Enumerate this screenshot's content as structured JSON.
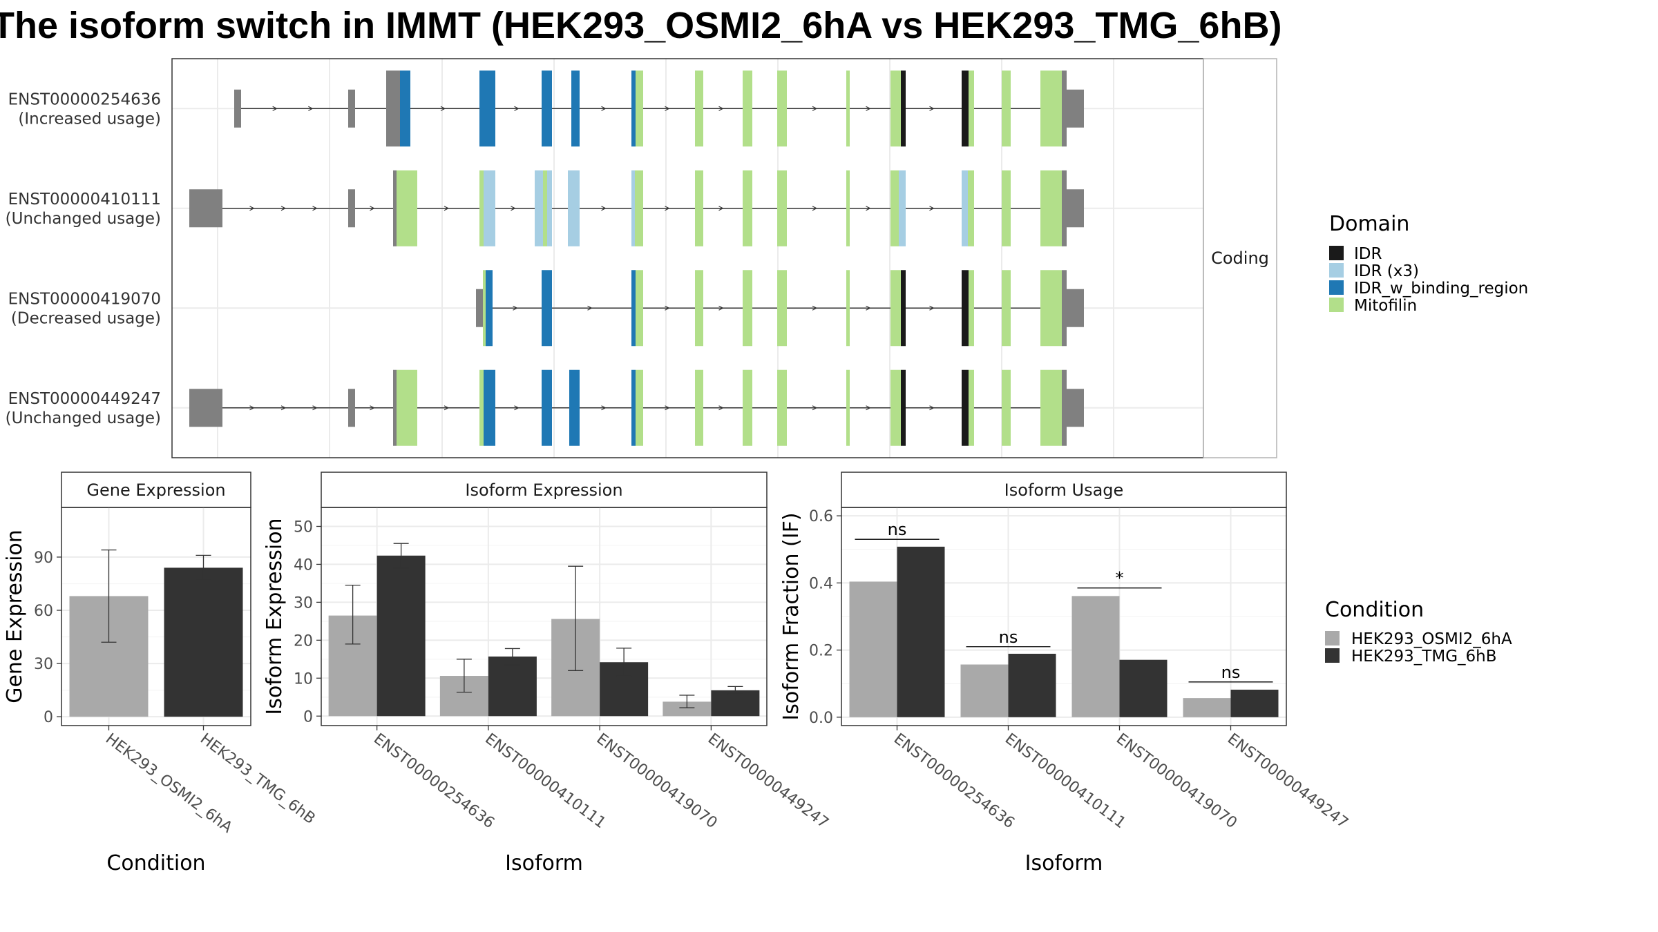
{
  "title": "The isoform switch in IMMT (HEK293_OSMI2_6hA vs HEK293_TMG_6hB)",
  "colors": {
    "IDR": "#1a1a1a",
    "IDR (x3)": "#a6cee3",
    "IDR_w_binding_region": "#1f78b4",
    "Mitofilin": "#b2df8a",
    "noncoding_exon": "#808080",
    "condition_a": "#a9a9a9",
    "condition_b": "#333333"
  },
  "chart_data": [
    {
      "type": "gene_structure",
      "strip_label": "Coding",
      "legend_title": "Domain",
      "legend": [
        "IDR",
        "IDR (x3)",
        "IDR_w_binding_region",
        "Mitofilin"
      ],
      "transcripts": [
        {
          "id": "ENST00000254636",
          "usage": "(Increased usage)",
          "start": 90,
          "end": 1320,
          "exons": [
            {
              "s": 90,
              "e": 100,
              "t": "utr"
            },
            {
              "s": 255,
              "e": 265,
              "t": "utr"
            },
            {
              "s": 310,
              "e": 330,
              "t": "utr"
            },
            {
              "s": 330,
              "e": 345,
              "t": "IDR_w_binding_region"
            },
            {
              "s": 445,
              "e": 468,
              "t": "IDR_w_binding_region"
            },
            {
              "s": 535,
              "e": 550,
              "t": "IDR_w_binding_region"
            },
            {
              "s": 578,
              "e": 590,
              "t": "IDR_w_binding_region"
            },
            {
              "s": 665,
              "e": 671,
              "t": "IDR_w_binding_region"
            },
            {
              "s": 671,
              "e": 682,
              "t": "Mitofilin"
            },
            {
              "s": 757,
              "e": 769,
              "t": "Mitofilin"
            },
            {
              "s": 826,
              "e": 840,
              "t": "Mitofilin"
            },
            {
              "s": 876,
              "e": 890,
              "t": "Mitofilin"
            },
            {
              "s": 976,
              "e": 981,
              "t": "Mitofilin"
            },
            {
              "s": 1040,
              "e": 1055,
              "t": "Mitofilin"
            },
            {
              "s": 1055,
              "e": 1062,
              "t": "IDR"
            },
            {
              "s": 1143,
              "e": 1153,
              "t": "IDR"
            },
            {
              "s": 1153,
              "e": 1161,
              "t": "Mitofilin"
            },
            {
              "s": 1201,
              "e": 1214,
              "t": "Mitofilin"
            },
            {
              "s": 1257,
              "e": 1288,
              "t": "Mitofilin"
            },
            {
              "s": 1288,
              "e": 1295,
              "t": "utr"
            },
            {
              "s": 1295,
              "e": 1320,
              "t": "utr_small"
            }
          ]
        },
        {
          "id": "ENST00000410111",
          "usage": "(Unchanged usage)",
          "start": 25,
          "end": 1320,
          "exons": [
            {
              "s": 25,
              "e": 65,
              "t": "utr_small"
            },
            {
              "s": 65,
              "e": 73,
              "t": "utr"
            },
            {
              "s": 255,
              "e": 265,
              "t": "utr"
            },
            {
              "s": 320,
              "e": 325,
              "t": "utr"
            },
            {
              "s": 325,
              "e": 355,
              "t": "Mitofilin"
            },
            {
              "s": 445,
              "e": 451,
              "t": "Mitofilin"
            },
            {
              "s": 451,
              "e": 468,
              "t": "IDR (x3)"
            },
            {
              "s": 525,
              "e": 537,
              "t": "IDR (x3)"
            },
            {
              "s": 537,
              "e": 543,
              "t": "Mitofilin"
            },
            {
              "s": 543,
              "e": 550,
              "t": "IDR (x3)"
            },
            {
              "s": 573,
              "e": 590,
              "t": "IDR (x3)"
            },
            {
              "s": 665,
              "e": 670,
              "t": "IDR (x3)"
            },
            {
              "s": 670,
              "e": 682,
              "t": "Mitofilin"
            },
            {
              "s": 757,
              "e": 769,
              "t": "Mitofilin"
            },
            {
              "s": 826,
              "e": 840,
              "t": "Mitofilin"
            },
            {
              "s": 876,
              "e": 890,
              "t": "Mitofilin"
            },
            {
              "s": 976,
              "e": 981,
              "t": "Mitofilin"
            },
            {
              "s": 1040,
              "e": 1052,
              "t": "Mitofilin"
            },
            {
              "s": 1052,
              "e": 1062,
              "t": "IDR (x3)"
            },
            {
              "s": 1143,
              "e": 1152,
              "t": "IDR (x3)"
            },
            {
              "s": 1152,
              "e": 1161,
              "t": "Mitofilin"
            },
            {
              "s": 1201,
              "e": 1214,
              "t": "Mitofilin"
            },
            {
              "s": 1257,
              "e": 1288,
              "t": "Mitofilin"
            },
            {
              "s": 1288,
              "e": 1295,
              "t": "utr"
            },
            {
              "s": 1295,
              "e": 1320,
              "t": "utr_small"
            }
          ]
        },
        {
          "id": "ENST00000419070",
          "usage": "(Decreased usage)",
          "start": 440,
          "end": 1320,
          "exons": [
            {
              "s": 440,
              "e": 450,
              "t": "utr_small"
            },
            {
              "s": 450,
              "e": 454,
              "t": "Mitofilin"
            },
            {
              "s": 454,
              "e": 464,
              "t": "IDR_w_binding_region"
            },
            {
              "s": 535,
              "e": 550,
              "t": "IDR_w_binding_region"
            },
            {
              "s": 665,
              "e": 671,
              "t": "IDR_w_binding_region"
            },
            {
              "s": 671,
              "e": 682,
              "t": "Mitofilin"
            },
            {
              "s": 757,
              "e": 769,
              "t": "Mitofilin"
            },
            {
              "s": 826,
              "e": 840,
              "t": "Mitofilin"
            },
            {
              "s": 876,
              "e": 890,
              "t": "Mitofilin"
            },
            {
              "s": 976,
              "e": 981,
              "t": "Mitofilin"
            },
            {
              "s": 1040,
              "e": 1055,
              "t": "Mitofilin"
            },
            {
              "s": 1055,
              "e": 1062,
              "t": "IDR"
            },
            {
              "s": 1143,
              "e": 1153,
              "t": "IDR"
            },
            {
              "s": 1153,
              "e": 1161,
              "t": "Mitofilin"
            },
            {
              "s": 1201,
              "e": 1214,
              "t": "Mitofilin"
            },
            {
              "s": 1257,
              "e": 1288,
              "t": "Mitofilin"
            },
            {
              "s": 1288,
              "e": 1295,
              "t": "utr"
            },
            {
              "s": 1295,
              "e": 1320,
              "t": "utr_small"
            }
          ]
        },
        {
          "id": "ENST00000449247",
          "usage": "(Unchanged usage)",
          "start": 25,
          "end": 1320,
          "exons": [
            {
              "s": 25,
              "e": 65,
              "t": "utr_small"
            },
            {
              "s": 65,
              "e": 73,
              "t": "utr"
            },
            {
              "s": 255,
              "e": 265,
              "t": "utr"
            },
            {
              "s": 320,
              "e": 325,
              "t": "utr"
            },
            {
              "s": 325,
              "e": 355,
              "t": "Mitofilin"
            },
            {
              "s": 445,
              "e": 451,
              "t": "Mitofilin"
            },
            {
              "s": 451,
              "e": 468,
              "t": "IDR_w_binding_region"
            },
            {
              "s": 535,
              "e": 550,
              "t": "IDR_w_binding_region"
            },
            {
              "s": 575,
              "e": 590,
              "t": "IDR_w_binding_region"
            },
            {
              "s": 665,
              "e": 671,
              "t": "IDR_w_binding_region"
            },
            {
              "s": 671,
              "e": 682,
              "t": "Mitofilin"
            },
            {
              "s": 757,
              "e": 769,
              "t": "Mitofilin"
            },
            {
              "s": 826,
              "e": 840,
              "t": "Mitofilin"
            },
            {
              "s": 876,
              "e": 890,
              "t": "Mitofilin"
            },
            {
              "s": 976,
              "e": 981,
              "t": "Mitofilin"
            },
            {
              "s": 1040,
              "e": 1055,
              "t": "Mitofilin"
            },
            {
              "s": 1055,
              "e": 1062,
              "t": "IDR"
            },
            {
              "s": 1143,
              "e": 1153,
              "t": "IDR"
            },
            {
              "s": 1153,
              "e": 1161,
              "t": "Mitofilin"
            },
            {
              "s": 1201,
              "e": 1214,
              "t": "Mitofilin"
            },
            {
              "s": 1257,
              "e": 1288,
              "t": "Mitofilin"
            },
            {
              "s": 1288,
              "e": 1295,
              "t": "utr"
            },
            {
              "s": 1295,
              "e": 1320,
              "t": "utr_small"
            }
          ]
        }
      ]
    },
    {
      "type": "bar",
      "strip_label": "Gene Expression",
      "xlabel": "Condition",
      "ylabel": "Gene Expression",
      "ylim": [
        -5,
        118
      ],
      "yticks": [
        0,
        30,
        60,
        90
      ],
      "categories": [
        "HEK293_OSMI2_6hA",
        "HEK293_TMG_6hB"
      ],
      "values": [
        68,
        84
      ],
      "errors": [
        [
          42,
          94
        ],
        [
          77,
          91
        ]
      ]
    },
    {
      "type": "bar",
      "strip_label": "Isoform Expression",
      "xlabel": "Isoform",
      "ylabel": "Isoform Expression",
      "ylim": [
        -2.5,
        55
      ],
      "yticks": [
        0,
        10,
        20,
        30,
        40,
        50
      ],
      "categories": [
        "ENST00000254636",
        "ENST00000410111",
        "ENST00000419070",
        "ENST00000449247"
      ],
      "series": [
        {
          "name": "HEK293_OSMI2_6hA",
          "values": [
            26.5,
            10.6,
            25.6,
            3.8
          ],
          "errors": [
            [
              19,
              34.5
            ],
            [
              6.3,
              15
            ],
            [
              12,
              39.5
            ],
            [
              2.2,
              5.5
            ]
          ]
        },
        {
          "name": "HEK293_TMG_6hB",
          "values": [
            42.3,
            15.7,
            14.2,
            6.8
          ],
          "errors": [
            [
              39,
              45.5
            ],
            [
              13.5,
              17.8
            ],
            [
              10.5,
              17.9
            ],
            [
              5.8,
              7.8
            ]
          ]
        }
      ]
    },
    {
      "type": "bar",
      "strip_label": "Isoform Usage",
      "xlabel": "Isoform",
      "ylabel": "Isoform Fraction (IF)",
      "ylim": [
        -0.025,
        0.625
      ],
      "yticks": [
        "0.0",
        "0.2",
        "0.4",
        "0.6"
      ],
      "categories": [
        "ENST00000254636",
        "ENST00000410111",
        "ENST00000419070",
        "ENST00000449247"
      ],
      "series": [
        {
          "name": "HEK293_OSMI2_6hA",
          "values": [
            0.404,
            0.157,
            0.361,
            0.057
          ]
        },
        {
          "name": "HEK293_TMG_6hB",
          "values": [
            0.508,
            0.189,
            0.171,
            0.082
          ]
        }
      ],
      "significance": [
        "ns",
        "ns",
        "*",
        "ns"
      ],
      "sig_y": [
        0.53,
        0.21,
        0.385,
        0.105
      ]
    }
  ],
  "condition_legend": {
    "title": "Condition",
    "items": [
      "HEK293_OSMI2_6hA",
      "HEK293_TMG_6hB"
    ]
  }
}
